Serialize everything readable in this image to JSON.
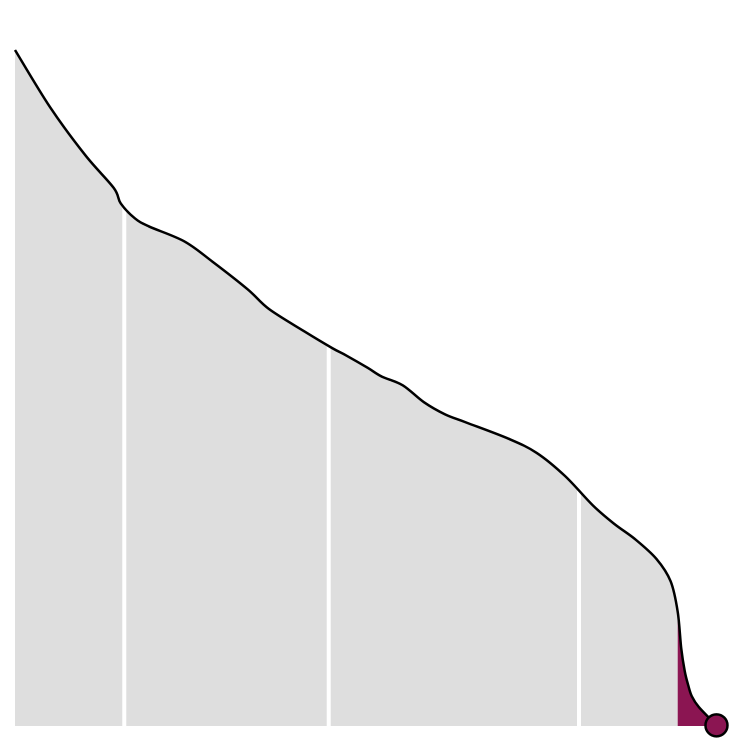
{
  "chart_data": {
    "type": "area",
    "title": "",
    "xlabel": "",
    "ylabel": "",
    "xlim": [
      0,
      100
    ],
    "ylim": [
      0,
      100
    ],
    "grid": false,
    "legend": "none",
    "x": [
      0,
      5,
      10,
      14,
      15,
      17,
      19,
      24,
      28,
      33,
      36,
      41,
      45,
      47,
      50,
      52,
      55,
      58,
      61,
      64,
      70,
      74,
      78,
      82,
      85,
      88,
      91,
      93,
      94,
      94.5,
      95,
      95.5,
      96,
      97,
      99.5
    ],
    "y": [
      100,
      91.5,
      84.4,
      79.6,
      77.3,
      75.1,
      73.9,
      71.7,
      68.7,
      64.6,
      61.7,
      58.4,
      55.9,
      54.8,
      53.0,
      51.7,
      50.4,
      47.9,
      46.1,
      44.9,
      42.5,
      40.4,
      37.0,
      32.6,
      29.9,
      27.6,
      24.7,
      21.4,
      16.9,
      11.5,
      8.1,
      6.0,
      4.4,
      2.8,
      0.1
    ],
    "segments": [
      {
        "x_start": 0,
        "x_end": 15.5,
        "color": "#dedede"
      },
      {
        "x_start": 15.5,
        "x_end": 44.5,
        "color": "#dedede"
      },
      {
        "x_start": 44.5,
        "x_end": 80,
        "color": "#dedede"
      },
      {
        "x_start": 80,
        "x_end": 94,
        "color": "#dedede"
      },
      {
        "x_start": 94,
        "x_end": 99.5,
        "color": "#8b1552"
      }
    ],
    "end_marker": {
      "x": 99.5,
      "y": 0.1
    },
    "colors": {
      "area_fill": "#dedede",
      "highlight_fill": "#8b1552",
      "outline": "#000000",
      "separator": "#ffffff",
      "background": "#ffffff"
    }
  }
}
